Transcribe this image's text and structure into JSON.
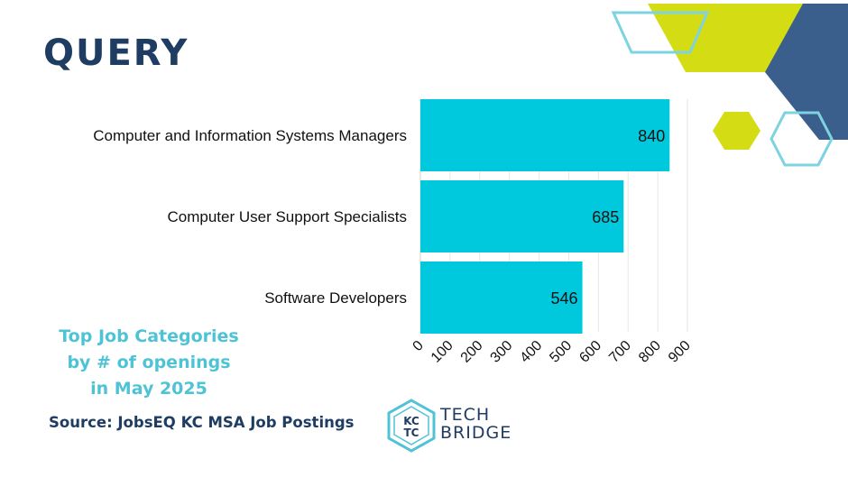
{
  "header": {
    "title": "QUERY"
  },
  "caption": {
    "lines": [
      "Top Job Categories",
      "by # of openings",
      "in May 2025"
    ]
  },
  "source": "Source: JobsEQ KC MSA Job Postings",
  "logo": {
    "badge_top": "KC",
    "badge_bottom": "TC",
    "name_line1": "TECH",
    "name_line2": "BRIDGE"
  },
  "colors": {
    "bar": "#00c9de",
    "navy": "#1f3c63",
    "lime": "#d4dc14",
    "accent_cyan": "#7dd3e0"
  },
  "chart_data": {
    "type": "bar",
    "orientation": "horizontal",
    "categories": [
      "Computer and Information Systems Managers",
      "Computer User Support Specialists",
      "Software Developers"
    ],
    "values": [
      840,
      685,
      546
    ],
    "xlim": [
      0,
      900
    ],
    "xticks": [
      "0",
      "100",
      "200",
      "300",
      "400",
      "500",
      "600",
      "700",
      "800",
      "900"
    ],
    "grid": true,
    "data_labels": [
      "840",
      "685",
      "546"
    ]
  }
}
